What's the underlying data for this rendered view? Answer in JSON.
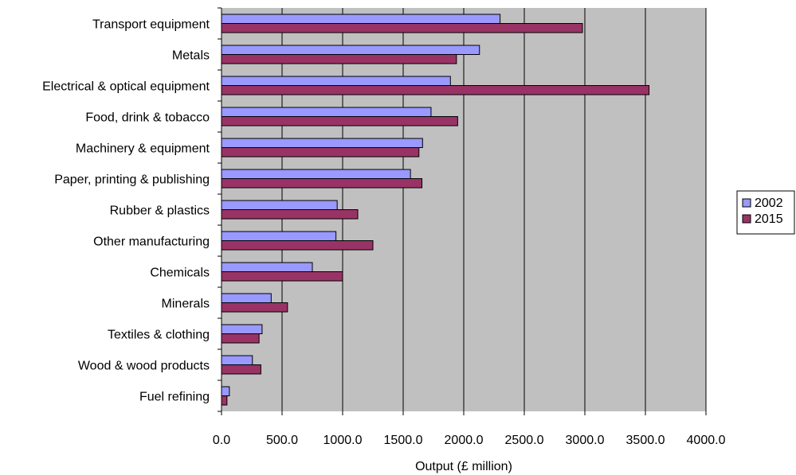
{
  "chart_data": {
    "type": "bar",
    "orientation": "horizontal",
    "categories": [
      "Transport equipment",
      "Metals",
      "Electrical & optical equipment",
      "Food, drink & tobacco",
      "Machinery & equipment",
      "Paper, printing & publishing",
      "Rubber & plastics",
      "Other manufacturing",
      "Chemicals",
      "Minerals",
      "Textiles & clothing",
      "Wood & wood products",
      "Fuel refining"
    ],
    "series": [
      {
        "name": "2002",
        "color": "#9999FF",
        "values": [
          2300,
          2130,
          1890,
          1730,
          1660,
          1560,
          955,
          945,
          750,
          410,
          335,
          255,
          65
        ]
      },
      {
        "name": "2015",
        "color": "#993366",
        "values": [
          2980,
          1940,
          3530,
          1950,
          1630,
          1655,
          1125,
          1250,
          1000,
          545,
          310,
          325,
          45
        ]
      }
    ],
    "xlabel": "Output (£ million)",
    "xlim": [
      0,
      4000
    ],
    "xticks": [
      "0.0",
      "500.0",
      "1000.0",
      "1500.0",
      "2000.0",
      "2500.0",
      "3000.0",
      "3500.0",
      "4000.0"
    ],
    "plot_background": "#C0C0C0",
    "grid": true,
    "legend_position": "right"
  }
}
